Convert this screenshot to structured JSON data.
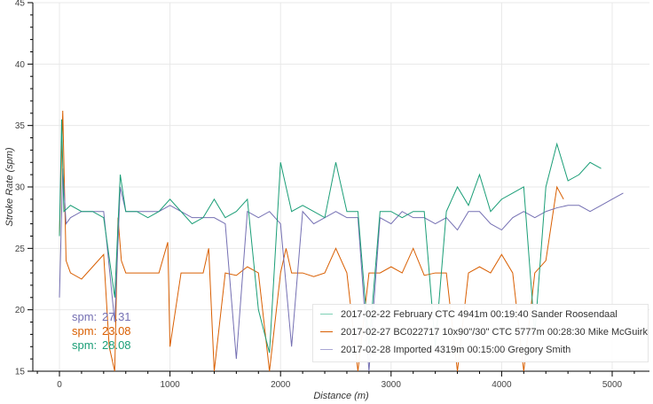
{
  "chart_data": {
    "type": "line",
    "xlabel": "Distance (m)",
    "ylabel": "Stroke Rate (spm)",
    "xlim": [
      -250,
      5400
    ],
    "ylim": [
      15,
      45
    ],
    "xticks": [
      0,
      1000,
      2000,
      3000,
      4000,
      5000
    ],
    "yticks": [
      15,
      20,
      25,
      30,
      35,
      40,
      45
    ],
    "grid": true,
    "legend_position": "bottom-right",
    "series": [
      {
        "name": "2017-02-22 February CTC 4941m 00:19:40 Sander Roosendaal",
        "color": "#1b9e77",
        "x": [
          0,
          20,
          40,
          100,
          200,
          300,
          400,
          500,
          550,
          600,
          700,
          800,
          900,
          1000,
          1100,
          1200,
          1300,
          1400,
          1500,
          1600,
          1700,
          1800,
          1900,
          2000,
          2100,
          2200,
          2300,
          2400,
          2500,
          2600,
          2700,
          2800,
          2900,
          3000,
          3100,
          3200,
          3300,
          3400,
          3500,
          3600,
          3700,
          3800,
          3900,
          4000,
          4100,
          4200,
          4300,
          4400,
          4500,
          4600,
          4700,
          4800,
          4900
        ],
        "y": [
          26,
          35.5,
          28,
          28.5,
          28,
          28,
          27.5,
          21,
          31,
          28,
          28,
          27.5,
          28,
          29,
          28,
          27,
          27.5,
          29,
          27.5,
          28,
          29,
          20,
          16.5,
          32,
          28,
          28.5,
          28,
          27.5,
          32,
          28,
          28,
          17,
          28,
          28,
          27.5,
          28,
          28,
          17,
          28,
          30,
          28.5,
          31,
          28,
          29,
          29.5,
          30,
          18,
          30,
          33.5,
          30.5,
          31,
          32,
          31.5
        ]
      },
      {
        "name": "2017-02-27 BC022717 10x90\"/30\" CTC 5777m 00:28:30 Mike McGuirk",
        "color": "#d95f02",
        "x": [
          0,
          30,
          60,
          100,
          200,
          300,
          400,
          450,
          500,
          530,
          560,
          600,
          700,
          800,
          900,
          980,
          1000,
          1100,
          1200,
          1300,
          1350,
          1400,
          1500,
          1600,
          1700,
          1800,
          1900,
          2000,
          2050,
          2100,
          2200,
          2300,
          2400,
          2500,
          2600,
          2700,
          2800,
          2900,
          3000,
          3100,
          3200,
          3300,
          3400,
          3500,
          3600,
          3700,
          3800,
          3900,
          4000,
          4100,
          4200,
          4300,
          4400,
          4500,
          4560
        ],
        "y": [
          26,
          36.2,
          24,
          23,
          22.5,
          23.5,
          24.5,
          17,
          15,
          27.5,
          24,
          23,
          23,
          23,
          23,
          25.5,
          17,
          23,
          23,
          23,
          25,
          15,
          23,
          22.8,
          23.5,
          23,
          15,
          23,
          25,
          23,
          23,
          22.7,
          23,
          25,
          23,
          15,
          23,
          23,
          23.5,
          23,
          25,
          22.8,
          23,
          23,
          15,
          23,
          23.5,
          23,
          24.5,
          23,
          15,
          23,
          24,
          30,
          29
        ]
      },
      {
        "name": "2017-02-28 Imported 4319m 00:15:00 Gregory Smith",
        "color": "#7570b3",
        "x": [
          0,
          30,
          60,
          100,
          200,
          300,
          400,
          500,
          550,
          600,
          700,
          800,
          900,
          1000,
          1100,
          1200,
          1300,
          1400,
          1500,
          1600,
          1700,
          1800,
          1900,
          2000,
          2100,
          2200,
          2300,
          2400,
          2500,
          2600,
          2700,
          2800,
          2900,
          3000,
          3100,
          3200,
          3300,
          3400,
          3500,
          3600,
          3700,
          3800,
          3900,
          4000,
          4100,
          4200,
          4300,
          4400,
          4500,
          4600,
          4700,
          4800,
          4900,
          5000,
          5100
        ],
        "y": [
          21,
          31.5,
          27,
          27.5,
          28,
          28,
          28,
          19,
          30,
          28,
          28,
          28,
          28,
          28.5,
          28,
          27.5,
          27.5,
          27.5,
          27,
          16,
          28,
          27.5,
          28,
          27,
          17,
          28,
          27,
          27.5,
          28,
          27.5,
          27.5,
          15,
          27.5,
          27,
          28,
          27.5,
          27.5,
          27,
          27.5,
          26.5,
          28,
          28,
          27,
          26.5,
          27.5,
          28,
          27.5,
          28,
          28.3,
          28.5,
          28.5,
          28,
          28.5,
          29,
          29.5
        ]
      }
    ]
  },
  "spm_readout": [
    {
      "label": "spm:",
      "value": "27.31",
      "color": "#7570b3"
    },
    {
      "label": "spm:",
      "value": "23.08",
      "color": "#d95f02"
    },
    {
      "label": "spm:",
      "value": "28.08",
      "color": "#1b9e77"
    }
  ]
}
